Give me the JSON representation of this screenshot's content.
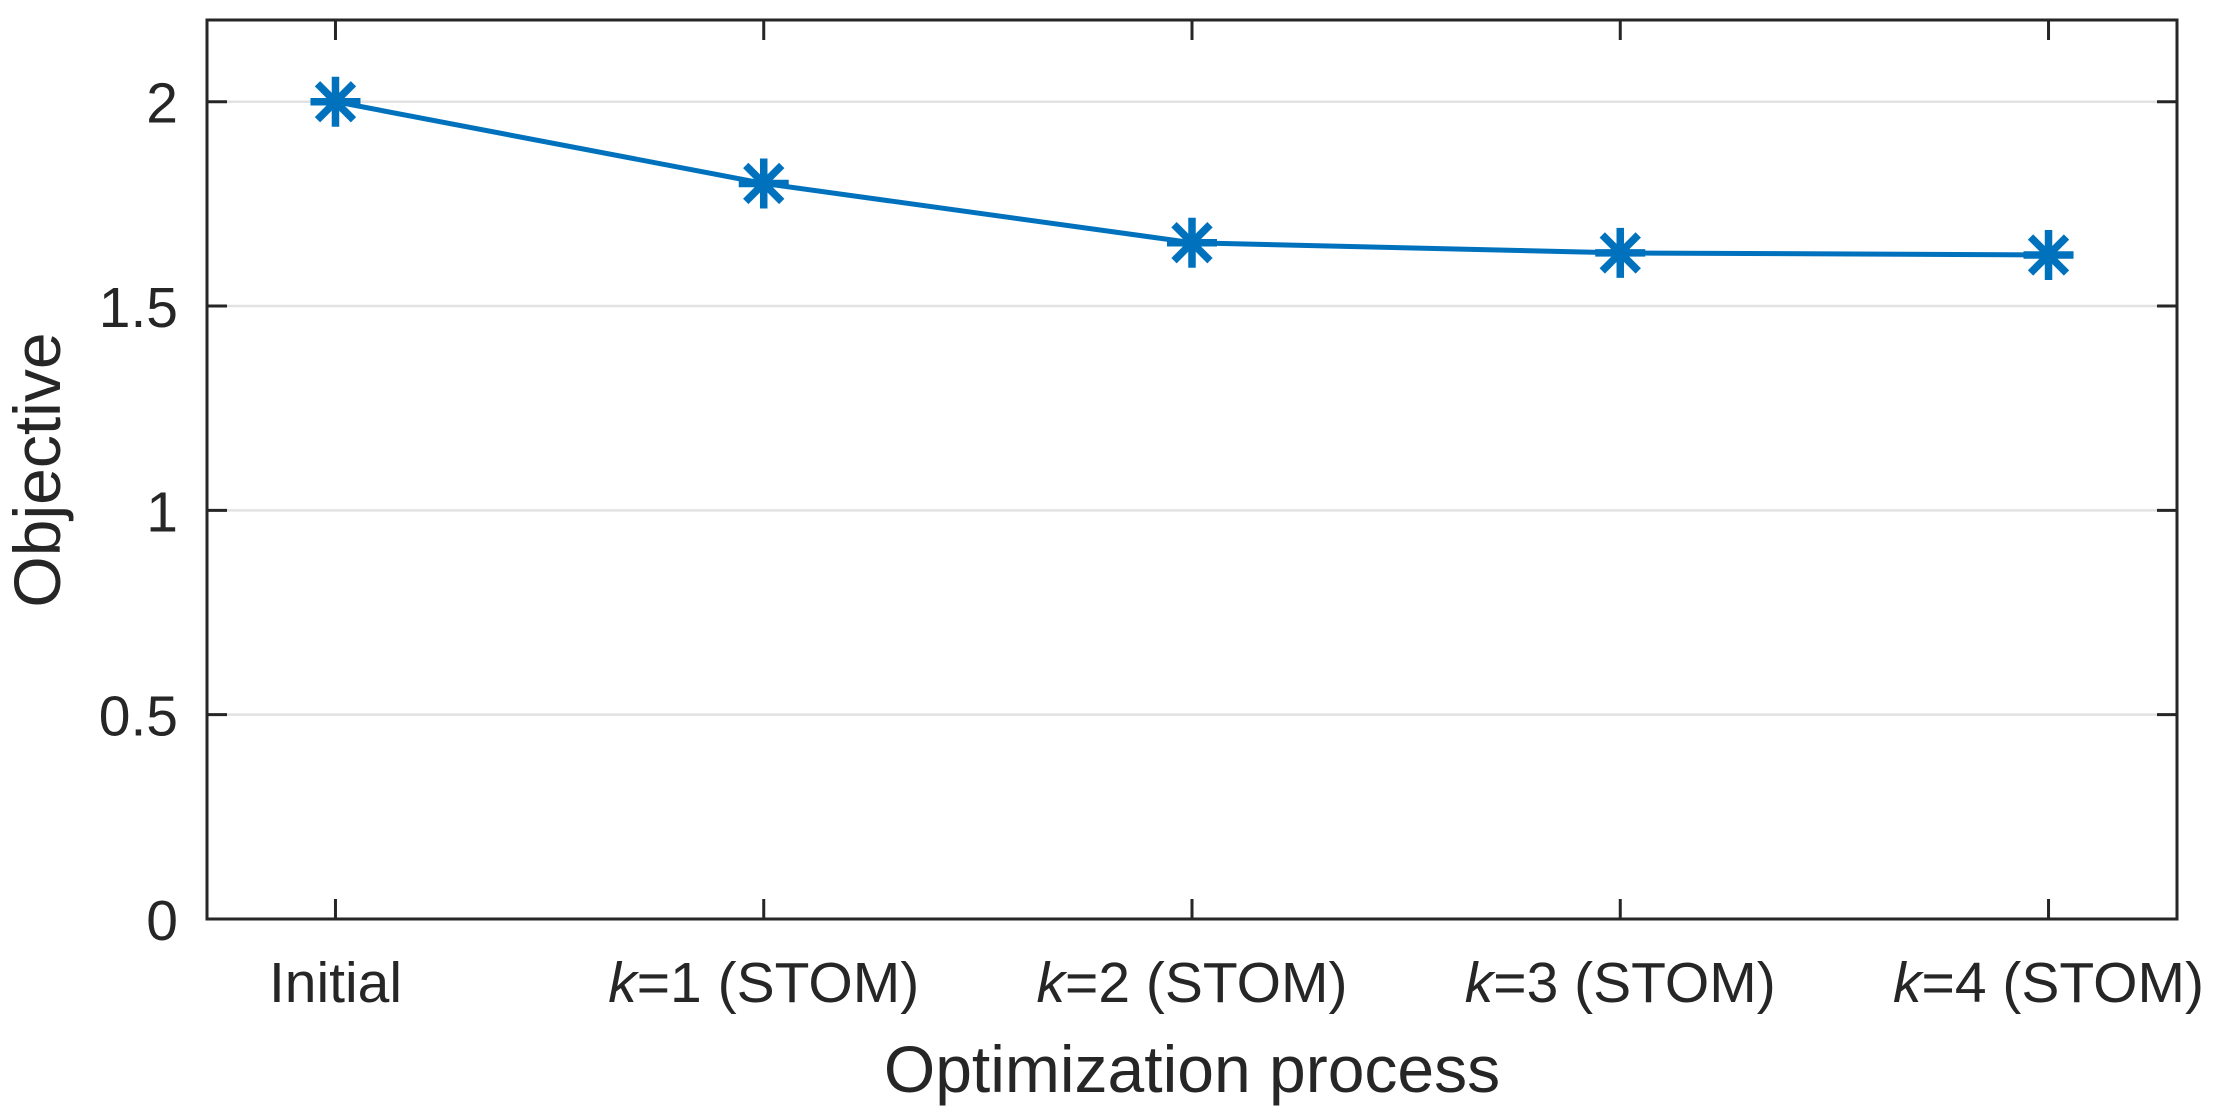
{
  "figure": {
    "background": "#ffffff"
  },
  "chart_data": {
    "type": "line",
    "title": "",
    "xlabel": "Optimization process",
    "ylabel": "Objective",
    "categories": [
      "Initial",
      "k=1 (STOM)",
      "k=2 (STOM)",
      "k=3 (STOM)",
      "k=4 (STOM)"
    ],
    "x_tick_labels": [
      {
        "italic": "",
        "text": "Initial"
      },
      {
        "italic": "k",
        "text": "=1 (STOM)"
      },
      {
        "italic": "k",
        "text": "=2 (STOM)"
      },
      {
        "italic": "k",
        "text": "=3 (STOM)"
      },
      {
        "italic": "k",
        "text": "=4 (STOM)"
      }
    ],
    "x": [
      1,
      2,
      3,
      4,
      5
    ],
    "series": [
      {
        "name": "Objective",
        "values": [
          2.0,
          1.8,
          1.655,
          1.63,
          1.625
        ],
        "color": "#0072BD",
        "marker": "asterisk",
        "line_width": 5
      }
    ],
    "xlim": [
      0.7,
      5.3
    ],
    "ylim": [
      0,
      2.2
    ],
    "y_ticks": [
      0,
      0.5,
      1,
      1.5,
      2
    ],
    "y_tick_labels": [
      "0",
      "0.5",
      "1",
      "1.5",
      "2"
    ],
    "grid": {
      "horizontal": true,
      "vertical": false
    },
    "legend": {
      "visible": false
    },
    "box": true,
    "colors": {
      "axis": "#262626",
      "grid": "#e2e2e2",
      "background": "#ffffff"
    }
  }
}
